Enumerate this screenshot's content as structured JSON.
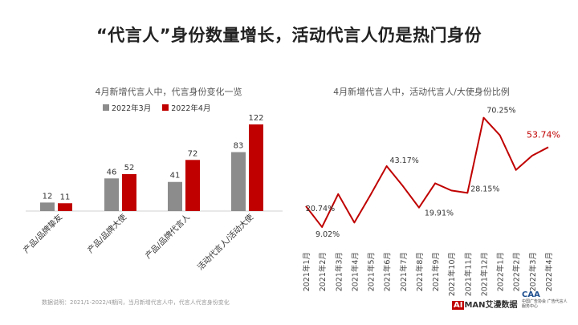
{
  "title": "“代言人”身份数量增长，活动代言人仍是热门身份",
  "colors": {
    "gray": "#8c8c8c",
    "red": "#c00000",
    "line": "#c00000"
  },
  "footnote": "数据说明：2021/1-2022/4期间，当月新增代言人中，代言人代言身份变化",
  "logos": {
    "aiman_box": "AI",
    "aiman_rest": "MAN艾漫数据",
    "cda_mark": "CAA",
    "cda_text": "中国广告协会 广告代言人服务中心"
  },
  "chart_data": [
    {
      "type": "bar",
      "title": "4月新增代言人中，代言身份变化一览",
      "categories": [
        "产品/品牌挚友",
        "产品/品牌大使",
        "产品/品牌代言人",
        "活动代言人/活动大使"
      ],
      "series": [
        {
          "name": "2022年3月",
          "values": [
            12,
            46,
            41,
            83
          ]
        },
        {
          "name": "2022年4月",
          "values": [
            11,
            52,
            72,
            122
          ]
        }
      ],
      "ylim": [
        0,
        130
      ],
      "legend": "top"
    },
    {
      "type": "line",
      "title": "4月新增代言人中，活动代言人/大使身份比例",
      "x": [
        "2021年1月",
        "2021年2月",
        "2021年3月",
        "2021年4月",
        "2021年5月",
        "2021年6月",
        "2021年7月",
        "2021年8月",
        "2021年9月",
        "2021年10月",
        "2021年11月",
        "2021年12月",
        "2022年1月",
        "2022年2月",
        "2022年3月",
        "2022年4月"
      ],
      "y": [
        20.74,
        9.02,
        27.5,
        11.5,
        27.0,
        43.17,
        32.0,
        19.91,
        33.5,
        29.5,
        28.15,
        70.25,
        60.5,
        41.0,
        49.0,
        53.74
      ],
      "labels": [
        "20.74%",
        "9.02%",
        "",
        "",
        "",
        "43.17%",
        "",
        "19.91%",
        "",
        "",
        "28.15%",
        "70.25%",
        "",
        "",
        "",
        "53.74%"
      ],
      "ylim": [
        0,
        80
      ]
    }
  ]
}
